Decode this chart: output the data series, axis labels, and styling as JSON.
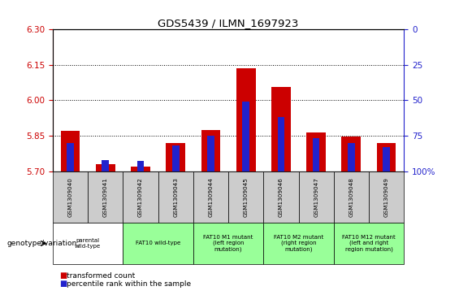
{
  "title": "GDS5439 / ILMN_1697923",
  "samples": [
    "GSM1309040",
    "GSM1309041",
    "GSM1309042",
    "GSM1309043",
    "GSM1309044",
    "GSM1309045",
    "GSM1309046",
    "GSM1309047",
    "GSM1309048",
    "GSM1309049"
  ],
  "transformed_count": [
    5.87,
    5.73,
    5.72,
    5.82,
    5.875,
    6.135,
    6.055,
    5.865,
    5.845,
    5.82
  ],
  "percentile_rank": [
    20,
    8,
    7,
    18,
    25,
    49,
    38,
    23,
    20,
    17
  ],
  "ylim_left": [
    5.7,
    6.3
  ],
  "ylim_right": [
    0,
    100
  ],
  "yticks_left": [
    5.7,
    5.85,
    6.0,
    6.15,
    6.3
  ],
  "yticks_right": [
    0,
    25,
    50,
    75,
    100
  ],
  "grid_lines": [
    5.85,
    6.0,
    6.15
  ],
  "bar_color_red": "#cc0000",
  "bar_color_blue": "#2222cc",
  "red_bar_width": 0.55,
  "blue_bar_width": 0.2,
  "groups": [
    {
      "label": "parental\nwild-type",
      "start": 0,
      "end": 1,
      "color": "#ffffff"
    },
    {
      "label": "FAT10 wild-type",
      "start": 2,
      "end": 3,
      "color": "#ccffcc"
    },
    {
      "label": "FAT10 M1 mutant\n(left region\nmutation)",
      "start": 4,
      "end": 5,
      "color": "#ccffcc"
    },
    {
      "label": "FAT10 M2 mutant\n(right region\nmutation)",
      "start": 6,
      "end": 7,
      "color": "#ccffcc"
    },
    {
      "label": "FAT10 M12 mutant\n(left and right\nregion mutation)",
      "start": 8,
      "end": 9,
      "color": "#ccffcc"
    }
  ],
  "legend_red_label": "transformed count",
  "legend_blue_label": "percentile rank within the sample",
  "genotype_label": "genotype/variation",
  "table_header_color": "#cccccc",
  "table_group1_color": "#ffffff",
  "table_group2_color": "#99ff99"
}
